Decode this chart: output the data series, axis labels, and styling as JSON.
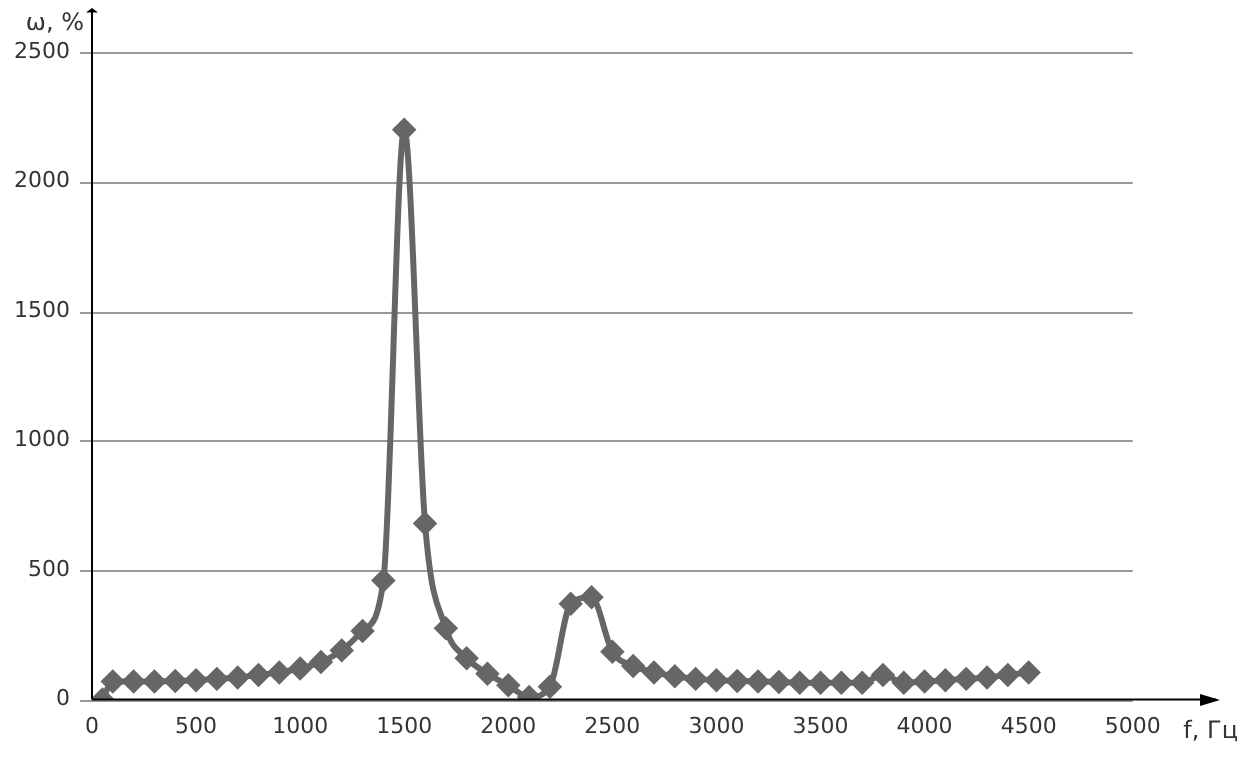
{
  "chart_data": {
    "type": "line",
    "xlabel": "f, Гц",
    "ylabel": "ω, %",
    "x": [
      50,
      100,
      200,
      300,
      400,
      500,
      600,
      700,
      800,
      900,
      1000,
      1100,
      1200,
      1300,
      1400,
      1500,
      1600,
      1700,
      1800,
      1900,
      2000,
      2100,
      2200,
      2300,
      2400,
      2500,
      2600,
      2700,
      2800,
      2900,
      3000,
      3100,
      3200,
      3300,
      3400,
      3500,
      3600,
      3700,
      3800,
      3900,
      4000,
      4100,
      4200,
      4300,
      4400,
      4500
    ],
    "series": [
      {
        "color": "#666666",
        "values": [
          0,
          70,
          70,
          70,
          72,
          75,
          80,
          85,
          95,
          105,
          120,
          145,
          190,
          265,
          460,
          2200,
          680,
          275,
          160,
          100,
          55,
          10,
          50,
          370,
          395,
          185,
          130,
          105,
          90,
          80,
          75,
          72,
          70,
          68,
          65,
          65,
          65,
          65,
          95,
          65,
          70,
          75,
          80,
          85,
          95,
          105
        ]
      }
    ],
    "xlim": [
      0,
      5400
    ],
    "xticks": [
      0,
      500,
      1000,
      1500,
      2000,
      2500,
      3000,
      3500,
      4000,
      4500,
      5000
    ],
    "ylim": [
      0,
      2500
    ],
    "yticks": [
      0,
      500,
      1000,
      1500,
      2000,
      2500
    ],
    "grid": "y",
    "legend": false,
    "marker": "diamond",
    "line_style": "solid"
  }
}
